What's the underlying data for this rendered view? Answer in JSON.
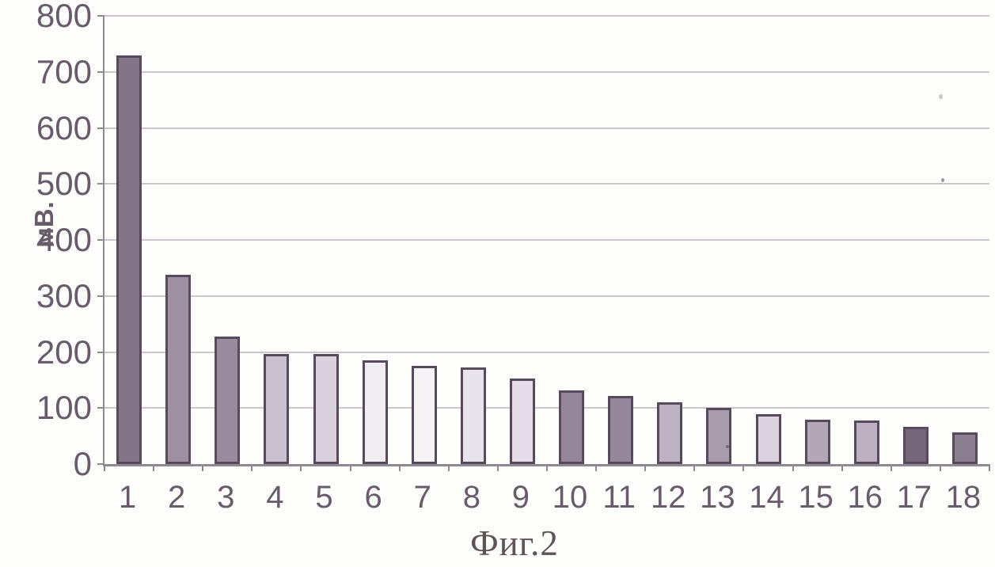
{
  "figure": {
    "caption": "Фиг.2"
  },
  "chart_data": {
    "type": "bar",
    "title": "",
    "xlabel": "",
    "ylabel": "мВ.",
    "categories": [
      "1",
      "2",
      "3",
      "4",
      "5",
      "6",
      "7",
      "8",
      "9",
      "10",
      "11",
      "12",
      "13",
      "14",
      "15",
      "16",
      "17",
      "18"
    ],
    "values": [
      730,
      338,
      228,
      196,
      196,
      185,
      175,
      172,
      152,
      132,
      121,
      110,
      100,
      89,
      79,
      78,
      66,
      56
    ],
    "ylim": [
      0,
      800
    ],
    "yticks": [
      0,
      100,
      200,
      300,
      400,
      500,
      600,
      700,
      800
    ],
    "grid": true,
    "legend": false,
    "bar_colors": [
      "#847488",
      "#9d90a2",
      "#998b9d",
      "#cac1cf",
      "#d9d2dc",
      "#f1edf2",
      "#f6f3f6",
      "#e9e3ec",
      "#e4dde7",
      "#95879b",
      "#96889c",
      "#beb3c4",
      "#a89bac",
      "#dbd4de",
      "#b2a7b7",
      "#bcb1c1",
      "#746779",
      "#8b7e90"
    ],
    "bar_border_color": "#574a5a",
    "gridline_color": "#ccc6ca",
    "axis_color": "#8f8994",
    "text_color": "#685c6a"
  }
}
